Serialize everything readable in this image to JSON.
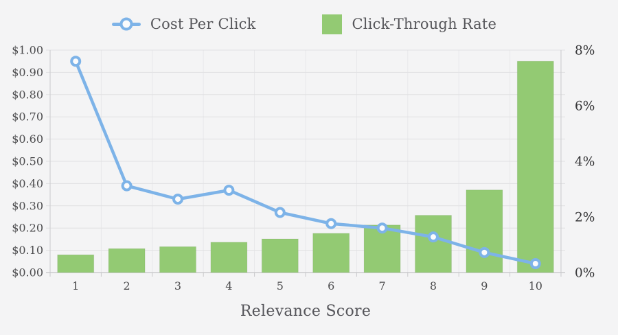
{
  "app": {
    "background_color": "#f4f4f5"
  },
  "chart_data": {
    "type": "combo",
    "categories": [
      "1",
      "2",
      "3",
      "4",
      "5",
      "6",
      "7",
      "8",
      "9",
      "10"
    ],
    "x_label": "Relevance Score",
    "series": [
      {
        "name": "Cost Per Click",
        "type": "line",
        "axis": "left",
        "color": "#7db3e8",
        "marker_fill": "#fbfbfc",
        "values": [
          0.95,
          0.39,
          0.33,
          0.37,
          0.27,
          0.22,
          0.2,
          0.16,
          0.09,
          0.04
        ]
      },
      {
        "name": "Click-Through Rate",
        "type": "bar",
        "axis": "right",
        "color": "#93ca73",
        "values": [
          0.64,
          0.86,
          0.93,
          1.09,
          1.21,
          1.41,
          1.71,
          2.06,
          2.97,
          7.6
        ]
      }
    ],
    "left_axis": {
      "min": 0,
      "max": 1,
      "tick_step": 0.1,
      "tick_labels": [
        "$0.00",
        "$0.10",
        "$0.20",
        "$0.30",
        "$0.40",
        "$0.50",
        "$0.60",
        "$0.70",
        "$0.80",
        "$0.90",
        "$1.00"
      ]
    },
    "right_axis": {
      "min": 0,
      "max": 8,
      "tick_step": 2,
      "tick_labels": [
        "0%",
        "2%",
        "4%",
        "6%",
        "8%"
      ]
    },
    "grid": true,
    "legend_position": "top",
    "grid_color_h": "#e0e0e2",
    "grid_color_v": "#e8e8ea",
    "axis_line_color": "#c9c9cc",
    "tick_text_color": "#4c4c4e",
    "right_tick_text_color": "#353537"
  }
}
